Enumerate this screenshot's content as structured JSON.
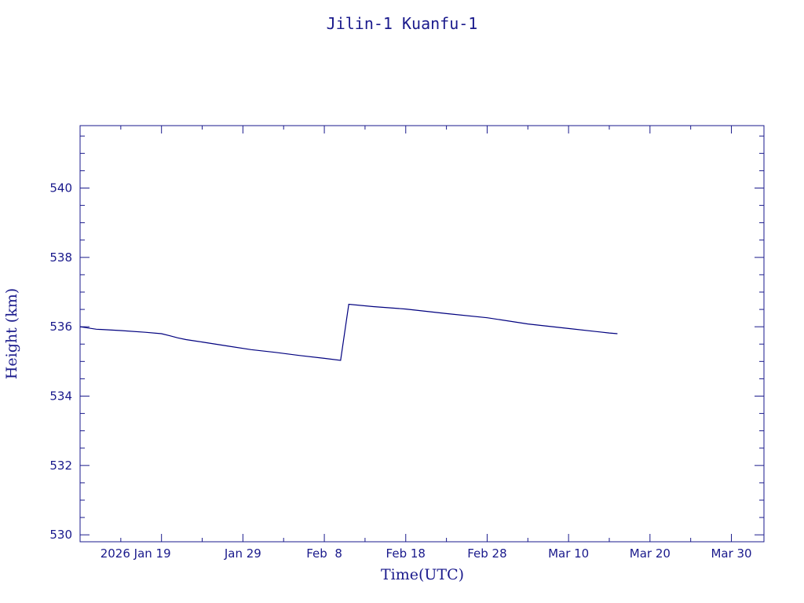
{
  "chart_data": {
    "type": "line",
    "title": "Jilin-1 Kuanfu-1",
    "xlabel": "Time(UTC)",
    "ylabel": "Height (km)",
    "xlim": [
      "2026-01-09",
      "2026-04-03"
    ],
    "ylim": [
      529.8,
      541.8
    ],
    "x_ticks": [
      {
        "date": "2026-01-19",
        "label": "2026 Jan 19"
      },
      {
        "date": "2026-01-29",
        "label": "Jan 29"
      },
      {
        "date": "2026-02-08",
        "label": "Feb  8"
      },
      {
        "date": "2026-02-18",
        "label": "Feb 18"
      },
      {
        "date": "2026-02-28",
        "label": "Feb 28"
      },
      {
        "date": "2026-03-10",
        "label": "Mar 10"
      },
      {
        "date": "2026-03-20",
        "label": "Mar 20"
      },
      {
        "date": "2026-03-30",
        "label": "Mar 30"
      }
    ],
    "y_ticks": [
      530,
      532,
      534,
      536,
      538,
      540
    ],
    "grid": false,
    "colors": {
      "line": "#00007f",
      "axis": "#1a1a8c",
      "text": "#1a1a8c"
    },
    "series": [
      {
        "x": [
          "2026-01-09",
          "2026-01-11",
          "2026-01-14",
          "2026-01-17",
          "2026-01-19",
          "2026-01-20",
          "2026-01-21",
          "2026-01-22",
          "2026-01-24",
          "2026-01-27",
          "2026-01-30",
          "2026-02-02",
          "2026-02-05",
          "2026-02-08",
          "2026-02-10",
          "2026-02-11",
          "2026-02-14",
          "2026-02-18",
          "2026-02-23",
          "2026-02-28",
          "2026-03-05",
          "2026-03-10",
          "2026-03-15",
          "2026-03-16"
        ],
        "y": [
          536.0,
          535.93,
          535.89,
          535.84,
          535.8,
          535.74,
          535.68,
          535.63,
          535.56,
          535.45,
          535.34,
          535.26,
          535.17,
          535.09,
          535.03,
          536.65,
          536.58,
          536.51,
          536.38,
          536.26,
          536.08,
          535.95,
          535.82,
          535.8
        ]
      }
    ]
  }
}
